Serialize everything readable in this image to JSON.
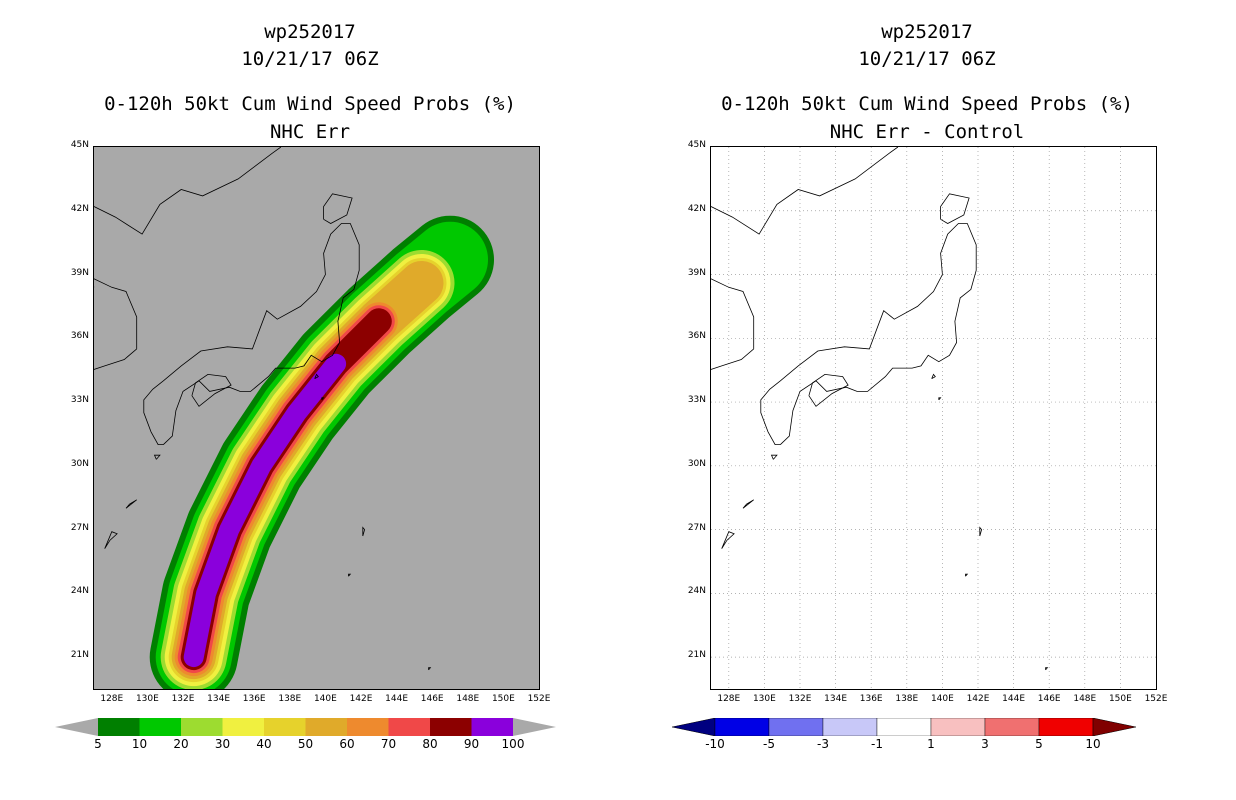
{
  "left": {
    "title_line1": "wp252017",
    "title_line2": "10/21/17 06Z",
    "title_line3": "0-120h 50kt Cum Wind Speed Probs (%)",
    "title_line4": "NHC Err",
    "background_color": "#a9a9a9",
    "colorbar_labels": [
      "5",
      "10",
      "20",
      "30",
      "40",
      "50",
      "60",
      "70",
      "80",
      "90",
      "100"
    ],
    "colorbar_colors": [
      "#007f00",
      "#00c800",
      "#9ddc30",
      "#f0f040",
      "#e6d22c",
      "#e0aa2a",
      "#ee8a2e",
      "#f04848",
      "#8c0000",
      "#8a00dc"
    ],
    "colorbar_end_color": "#a9a9a9"
  },
  "right": {
    "title_line1": "wp252017",
    "title_line2": "10/21/17 06Z",
    "title_line3": "0-120h 50kt Cum Wind Speed Probs (%)",
    "title_line4": "NHC Err - Control",
    "background_color": "#ffffff",
    "colorbar_labels": [
      "-10",
      "-5",
      "-3",
      "-1",
      "1",
      "3",
      "5",
      "10"
    ],
    "colorbar_colors": [
      "#0000e6",
      "#7070f0",
      "#c8c8f8",
      "#ffffff",
      "#f8c0c0",
      "#f07070",
      "#f00000"
    ],
    "colorbar_start_color": "#000080",
    "colorbar_end_color": "#800000"
  },
  "axes": {
    "lat_labels": [
      "45N",
      "42N",
      "39N",
      "36N",
      "33N",
      "30N",
      "27N",
      "24N",
      "21N"
    ],
    "lon_labels": [
      "128E",
      "130E",
      "132E",
      "134E",
      "136E",
      "138E",
      "140E",
      "142E",
      "144E",
      "146E",
      "148E",
      "150E",
      "152E"
    ]
  },
  "chart_data": {
    "type": "heatmap",
    "title": "0-120h 50kt Cum Wind Speed Probs (%)",
    "storm": "wp252017",
    "valid": "10/21/17 06Z",
    "lon_range": [
      127,
      152
    ],
    "lat_range": [
      19.5,
      45
    ],
    "track_centerline": [
      {
        "lon": 132.6,
        "lat": 21.0
      },
      {
        "lon": 133.3,
        "lat": 24.0
      },
      {
        "lon": 134.6,
        "lat": 27.0
      },
      {
        "lon": 136.4,
        "lat": 30.0
      },
      {
        "lon": 138.4,
        "lat": 32.5
      },
      {
        "lon": 140.6,
        "lat": 34.8
      },
      {
        "lon": 143.0,
        "lat": 36.8
      },
      {
        "lon": 145.4,
        "lat": 38.6
      },
      {
        "lon": 147.0,
        "lat": 39.7
      }
    ],
    "probability_levels": [
      5,
      10,
      20,
      30,
      40,
      50,
      60,
      70,
      80,
      90,
      100
    ],
    "difference_levels": [
      -10,
      -5,
      -3,
      -1,
      1,
      3,
      5,
      10
    ]
  }
}
